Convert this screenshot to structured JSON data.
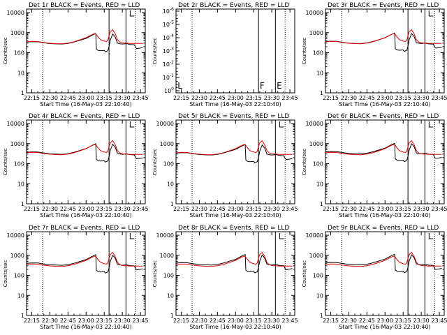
{
  "window": {
    "background": "#ffffff"
  },
  "colors": {
    "events": "#000000",
    "lld": "#e00000",
    "frame": "#000000"
  },
  "common": {
    "xlabel": "Start Time (16-May-03 22:10:40)",
    "ylabel": "Counts/sec",
    "xticks": [
      "22:15",
      "22:30",
      "22:45",
      "23:00",
      "23:15",
      "23:30",
      "23:45"
    ],
    "xtick_minutes": [
      15,
      30,
      45,
      60,
      75,
      90,
      105
    ],
    "x_range_minutes": [
      10.67,
      109
    ],
    "dotted_lines_minutes": [
      24,
      101
    ],
    "solid_lines_minutes": [
      79,
      93
    ],
    "log_yticks": [
      "1",
      "10",
      "100",
      "1000",
      "10000"
    ],
    "log_y_range": [
      1,
      15000
    ]
  },
  "panels": [
    {
      "title": "Det 1r BLACK = Events, RED = LLD",
      "mode": "normal"
    },
    {
      "title": "Det 2r BLACK = Events, RED = LLD",
      "mode": "empty",
      "yticks": [
        "10^{-6}",
        "10^{-5}",
        "10^{-4}",
        "10^{-3}",
        "10^{-2}",
        "10^{-1}",
        "10^{0}"
      ],
      "markers": [
        {
          "text": "L",
          "minute": 12
        },
        {
          "text": "F",
          "minute": 80
        },
        {
          "text": "E",
          "minute": 94
        }
      ]
    },
    {
      "title": "Det 3r BLACK = Events, RED = LLD",
      "mode": "normal"
    },
    {
      "title": "Det 4r BLACK = Events, RED = LLD",
      "mode": "normal"
    },
    {
      "title": "Det 5r BLACK = Events, RED = LLD",
      "mode": "normal"
    },
    {
      "title": "Det 6r BLACK = Events, RED = LLD",
      "mode": "normal"
    },
    {
      "title": "Det 7r BLACK = Events, RED = LLD",
      "mode": "normal"
    },
    {
      "title": "Det 8r BLACK = Events, RED = LLD",
      "mode": "normal"
    },
    {
      "title": "Det 9r BLACK = Events, RED = LLD",
      "mode": "normal"
    }
  ],
  "chart_data": {
    "type": "line",
    "x_unit": "minutes after 22:00",
    "series": [
      {
        "name": "Events",
        "color": "#000000",
        "x": [
          11,
          15,
          20,
          24,
          27,
          30,
          35,
          40,
          45,
          50,
          55,
          60,
          62,
          65,
          67,
          68,
          68.5,
          70,
          72,
          75,
          76,
          78,
          79,
          80,
          82,
          84,
          86,
          88,
          90,
          92,
          94,
          96,
          100,
          101,
          102,
          105,
          107
        ],
        "y": [
          340,
          355,
          350,
          320,
          300,
          285,
          275,
          270,
          290,
          340,
          420,
          520,
          600,
          750,
          850,
          900,
          150,
          130,
          125,
          130,
          110,
          125,
          200,
          420,
          850,
          620,
          300,
          280,
          270,
          280,
          280,
          260,
          250,
          180,
          160,
          170,
          180
        ]
      },
      {
        "name": "LLD",
        "color": "#e00000",
        "x": [
          11,
          15,
          20,
          24,
          27,
          30,
          35,
          40,
          45,
          50,
          55,
          60,
          62,
          65,
          67,
          68,
          70,
          72,
          75,
          77,
          78,
          79,
          80,
          82,
          84,
          86,
          88,
          90,
          92,
          94,
          96,
          100,
          101,
          105,
          107
        ],
        "y": [
          350,
          370,
          360,
          330,
          310,
          295,
          285,
          280,
          300,
          350,
          440,
          560,
          650,
          800,
          900,
          880,
          600,
          450,
          380,
          360,
          420,
          700,
          1100,
          1400,
          900,
          450,
          340,
          310,
          300,
          300,
          290,
          290,
          290,
          290,
          290
        ]
      }
    ]
  }
}
